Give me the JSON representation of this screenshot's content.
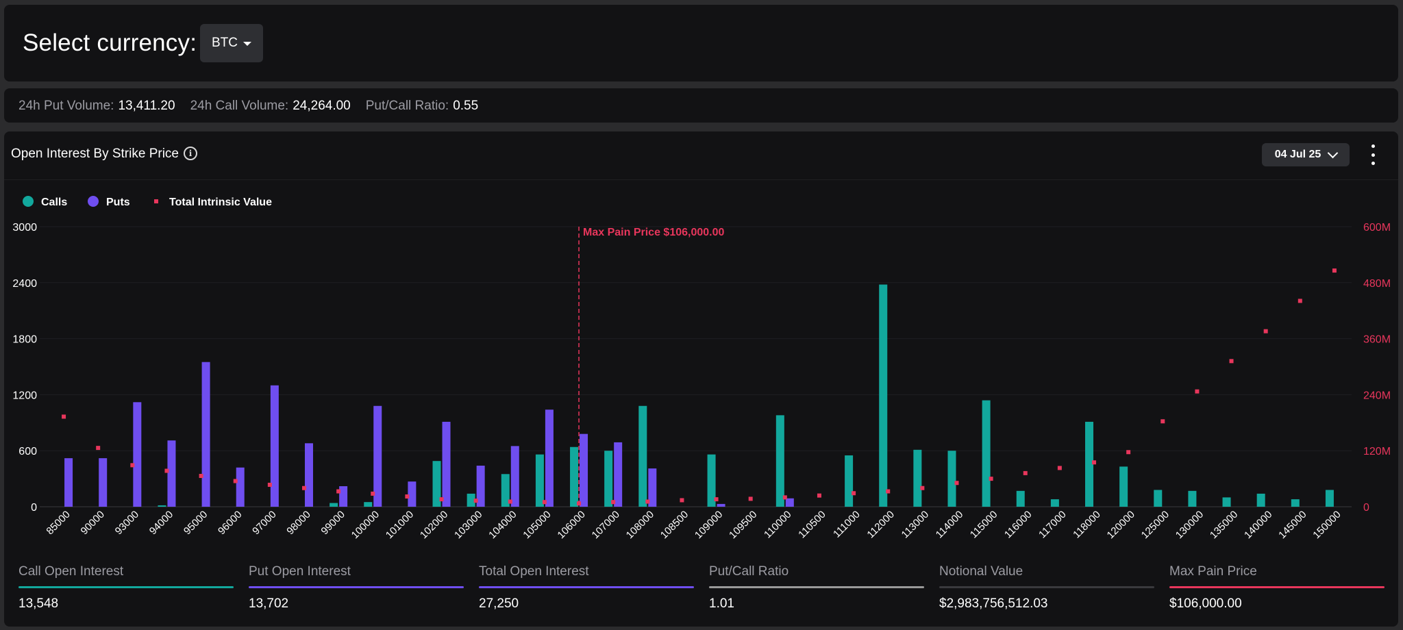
{
  "header": {
    "select_label": "Select currency:",
    "currency": "BTC"
  },
  "stats": [
    {
      "label": "24h Put Volume:",
      "value": "13,411.20"
    },
    {
      "label": "24h Call Volume:",
      "value": "24,264.00"
    },
    {
      "label": "Put/Call Ratio:",
      "value": "0.55"
    }
  ],
  "chart_panel": {
    "title": "Open Interest By Strike Price",
    "info_icon": "info-icon",
    "expiry": "04 Jul 25",
    "menu_icon": "vertical-dots-icon"
  },
  "colors": {
    "calls": "#12a89d",
    "puts": "#6f4ef0",
    "intrinsic": "#e8365c",
    "ratio": "#9a9a9a",
    "notional": "#3a3a3d"
  },
  "chart_data": {
    "type": "bar",
    "legend": [
      "Calls",
      "Puts",
      "Total Intrinsic Value"
    ],
    "legend_position": "top-left",
    "categories": [
      "85000",
      "90000",
      "93000",
      "94000",
      "95000",
      "96000",
      "97000",
      "98000",
      "99000",
      "100000",
      "101000",
      "102000",
      "103000",
      "104000",
      "105000",
      "106000",
      "107000",
      "108000",
      "108500",
      "109000",
      "109500",
      "110000",
      "110500",
      "111000",
      "112000",
      "113000",
      "114000",
      "115000",
      "116000",
      "117000",
      "118000",
      "120000",
      "125000",
      "130000",
      "135000",
      "140000",
      "145000",
      "150000"
    ],
    "series": [
      {
        "name": "Calls",
        "axis": "left",
        "values": [
          0,
          0,
          0,
          15,
          0,
          0,
          0,
          0,
          40,
          50,
          0,
          490,
          140,
          350,
          560,
          640,
          600,
          1080,
          0,
          560,
          0,
          980,
          0,
          550,
          2380,
          610,
          600,
          1140,
          170,
          80,
          910,
          430,
          180,
          170,
          100,
          140,
          80,
          180
        ]
      },
      {
        "name": "Puts",
        "axis": "left",
        "values": [
          520,
          520,
          1120,
          710,
          1550,
          420,
          1300,
          680,
          220,
          1080,
          270,
          910,
          440,
          650,
          1040,
          780,
          690,
          410,
          0,
          30,
          0,
          90,
          0,
          0,
          0,
          0,
          0,
          0,
          0,
          0,
          0,
          0,
          0,
          0,
          0,
          0,
          0,
          0
        ]
      },
      {
        "name": "Total Intrinsic Value",
        "axis": "right",
        "unit": "M",
        "values": [
          193,
          126,
          89,
          77,
          66,
          55,
          47,
          40,
          33,
          28,
          22,
          16,
          13,
          11,
          10,
          7,
          10,
          11,
          14,
          16,
          17,
          20,
          24,
          29,
          33,
          40,
          51,
          60,
          72,
          83,
          95,
          117,
          183,
          247,
          312,
          376,
          441,
          506
        ]
      }
    ],
    "y_left": {
      "ticks": [
        "3000",
        "2400",
        "1800",
        "1200",
        "600",
        "0"
      ],
      "range": [
        0,
        3000
      ]
    },
    "y_right": {
      "ticks": [
        "600M",
        "480M",
        "360M",
        "240M",
        "120M",
        "0"
      ],
      "range": [
        0,
        600
      ]
    },
    "grid": true,
    "annotation": {
      "label": "Max Pain Price $106,000.00",
      "category": "106000"
    }
  },
  "summary": [
    {
      "label": "Call Open Interest",
      "value": "13,548",
      "color": "#12a89d"
    },
    {
      "label": "Put Open Interest",
      "value": "13,702",
      "color": "#6f4ef0"
    },
    {
      "label": "Total Open Interest",
      "value": "27,250",
      "color": "#6f4ef0"
    },
    {
      "label": "Put/Call Ratio",
      "value": "1.01",
      "color": "#9a9a9a"
    },
    {
      "label": "Notional Value",
      "value": "$2,983,756,512.03",
      "color": "#3a3a3d"
    },
    {
      "label": "Max Pain Price",
      "value": "$106,000.00",
      "color": "#e8365c"
    }
  ]
}
